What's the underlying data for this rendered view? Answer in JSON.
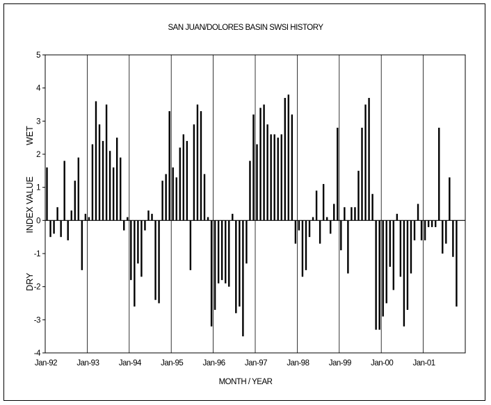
{
  "chart_data": {
    "type": "bar",
    "title": "SAN JUAN/DOLORES BASIN SWSI HISTORY",
    "xlabel": "MONTH / YEAR",
    "ylabel_parts": [
      "DRY",
      "INDEX VALUE",
      "WET"
    ],
    "ylim": [
      -4,
      5
    ],
    "yticks": [
      -4,
      -3,
      -2,
      -1,
      0,
      1,
      2,
      3,
      4,
      5
    ],
    "x_tick_labels": [
      "Jan-92",
      "Jan-93",
      "Jan-94",
      "Jan-95",
      "Jan-96",
      "Jan-97",
      "Jan-98",
      "Jan-99",
      "Jan-00",
      "Jan-01"
    ],
    "months_total": 120,
    "grid": "vertical lines at each January",
    "bar_color": "#000000",
    "values": [
      1.6,
      -0.5,
      -0.4,
      0.4,
      -0.5,
      1.8,
      -0.6,
      0.3,
      1.2,
      1.9,
      -1.5,
      0.2,
      0.1,
      2.3,
      3.6,
      2.9,
      2.4,
      3.5,
      2.1,
      1.6,
      2.5,
      1.9,
      -0.3,
      0.1,
      -1.8,
      -2.6,
      -1.3,
      -1.7,
      -0.3,
      0.3,
      0.2,
      -2.4,
      -2.5,
      1.2,
      1.4,
      3.3,
      1.6,
      1.3,
      2.2,
      2.6,
      2.4,
      -1.5,
      2.9,
      3.5,
      3.3,
      1.4,
      0.1,
      -3.2,
      -2.7,
      -1.9,
      -1.8,
      -1.9,
      -2.0,
      0.2,
      -2.8,
      -2.6,
      -3.5,
      -1.3,
      1.8,
      3.2,
      2.3,
      3.4,
      3.5,
      2.9,
      2.6,
      2.6,
      2.5,
      2.6,
      3.7,
      3.8,
      3.2,
      -0.7,
      -0.3,
      -1.7,
      -1.5,
      -0.5,
      0.1,
      0.9,
      -0.7,
      1.1,
      0.1,
      -0.4,
      0.5,
      2.8,
      -0.9,
      0.4,
      -1.6,
      0.4,
      0.4,
      1.5,
      2.8,
      3.5,
      3.7,
      0.8,
      -3.3,
      -3.3,
      -2.9,
      -2.5,
      -1.4,
      -2.1,
      0.2,
      -1.7,
      -3.2,
      -2.7,
      -1.6,
      -0.6,
      0.5,
      -0.6,
      -0.6,
      -0.2,
      -0.2,
      -0.2,
      2.8,
      -1.0,
      -0.7,
      1.3,
      -1.1,
      -2.6
    ]
  }
}
